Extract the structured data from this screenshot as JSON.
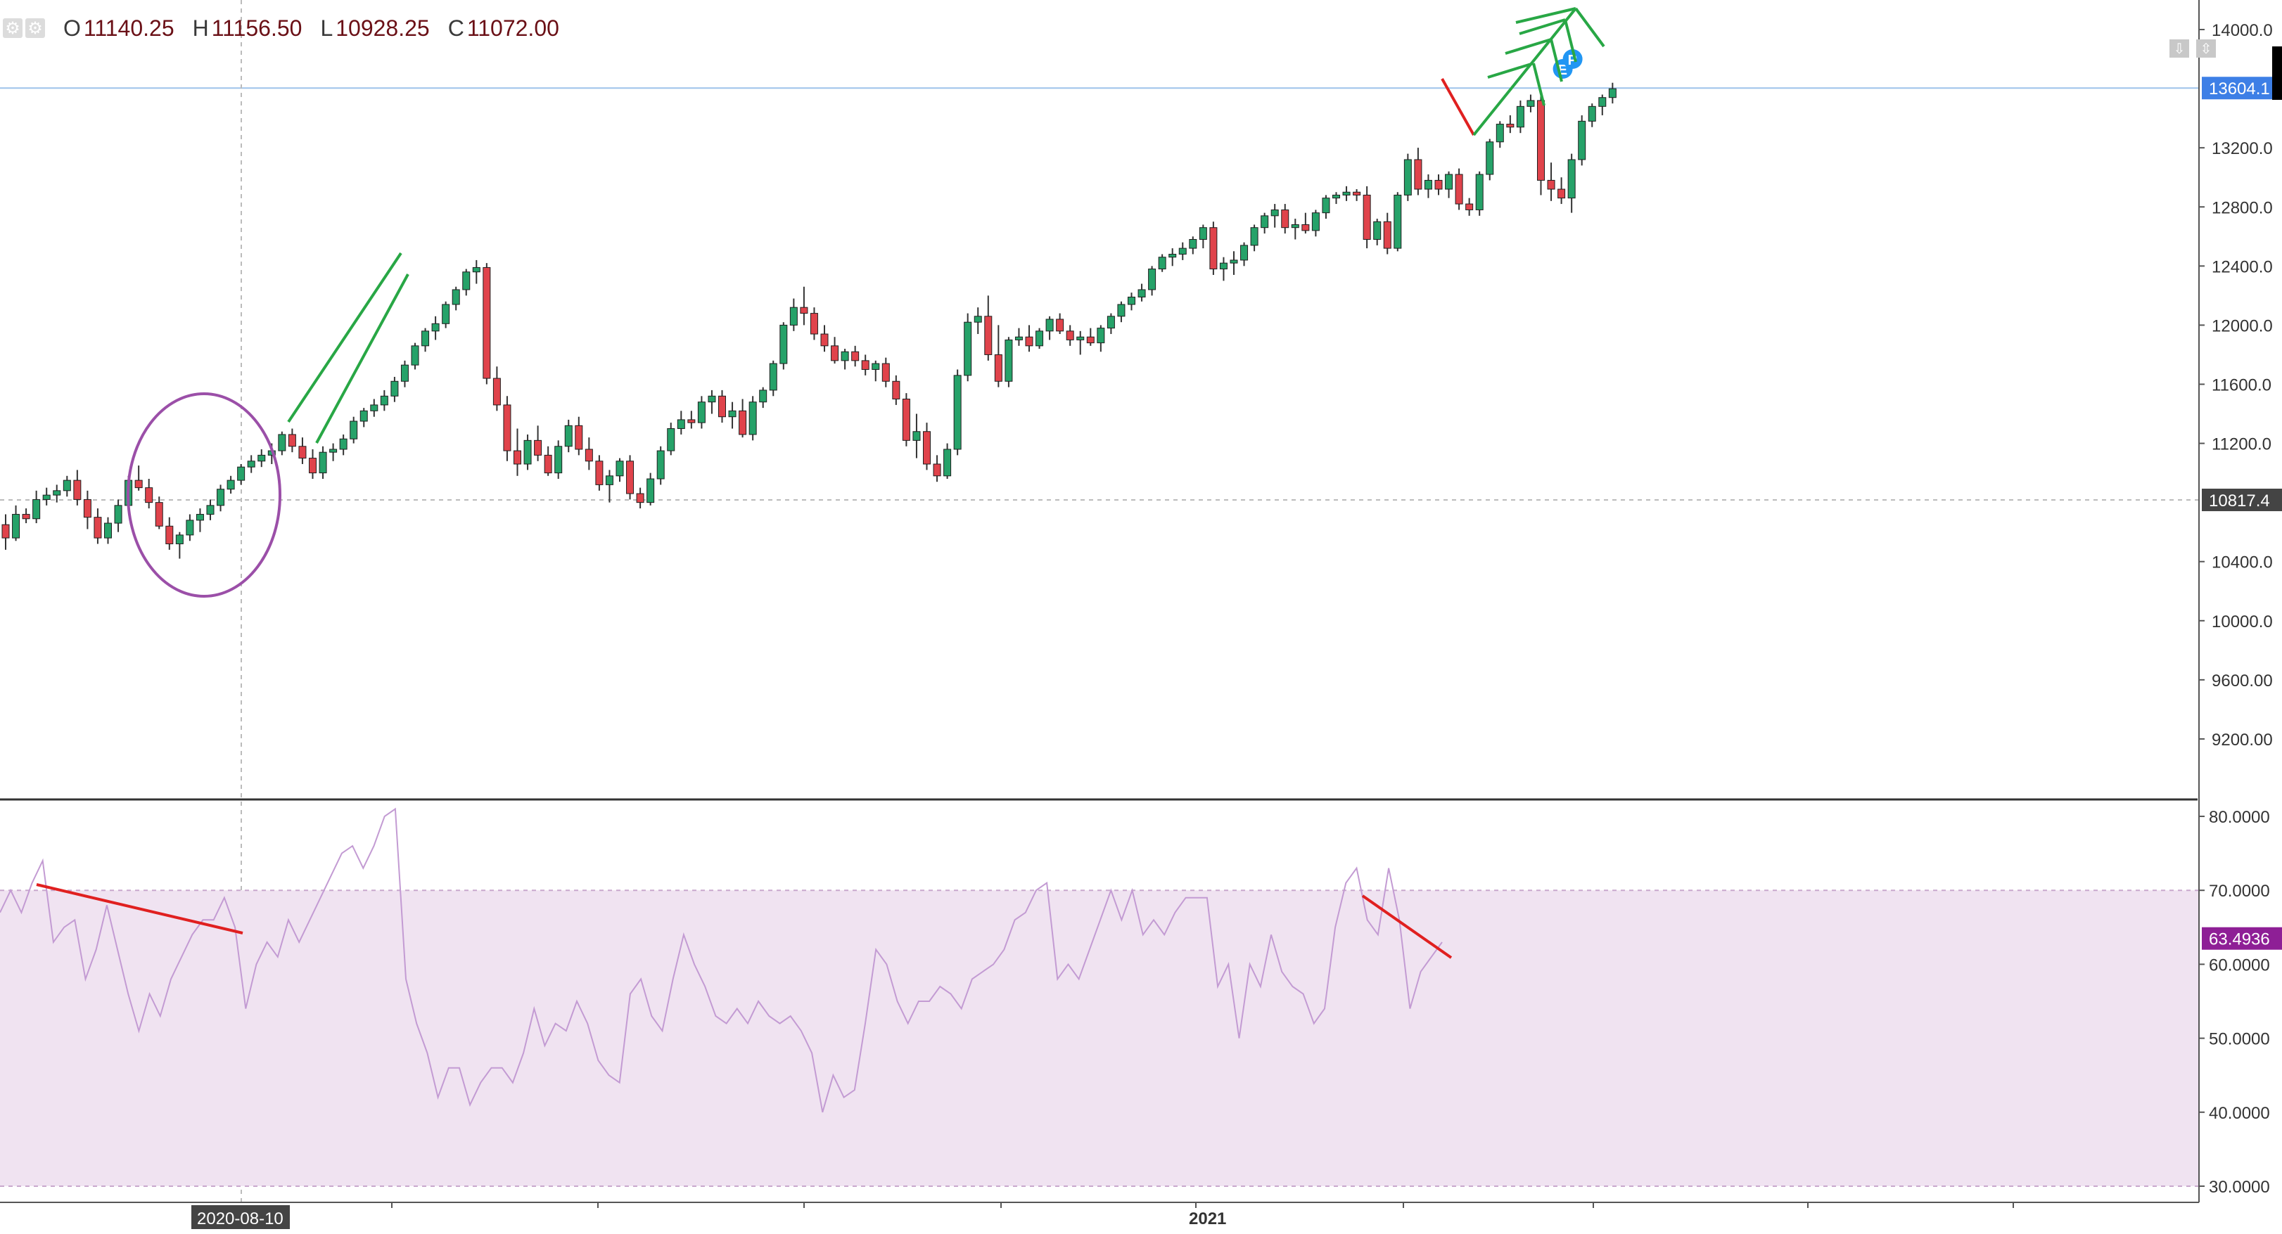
{
  "ohlc": {
    "open_label": "O",
    "open": "11140.25",
    "high_label": "H",
    "high": "11156.50",
    "low_label": "L",
    "low": "10928.25",
    "close_label": "C",
    "close": "11072.00"
  },
  "price_axis": {
    "ticks": [
      "14000.0",
      "13200.0",
      "12800.0",
      "12400.0",
      "12000.0",
      "11600.0",
      "11200.0",
      "10400.0",
      "10000.0",
      "9600.00",
      "9200.00"
    ],
    "last_price_label": "13604.1",
    "crosshair_price_label": "10817.4"
  },
  "rsi_axis": {
    "ticks": [
      "80.0000",
      "70.0000",
      "60.0000",
      "50.0000",
      "40.0000",
      "30.0000"
    ],
    "current_label": "63.4936"
  },
  "time_axis": {
    "crosshair_date": "2020-08-10",
    "year_label": "2021"
  },
  "colors": {
    "up": "#26a269",
    "down": "#e0434b",
    "wick": "#333333",
    "rsi_line": "#c39bd3",
    "rsi_band": "#f0e3f1",
    "last_price_tag": "#3d7fe6",
    "rsi_tag": "#8e1f96",
    "ellipse": "#9b4fa8",
    "trend_red": "#e02020",
    "trend_green": "#28a745"
  },
  "markers": {
    "earnings": "E",
    "dividend": "P"
  },
  "chart_data": [
    {
      "type": "candlestick",
      "ylim": [
        8800,
        14200
      ],
      "ohlc": [
        [
          10650,
          10720,
          10480,
          10560
        ],
        [
          10560,
          10780,
          10540,
          10720
        ],
        [
          10720,
          10760,
          10660,
          10690
        ],
        [
          10690,
          10880,
          10660,
          10820
        ],
        [
          10820,
          10900,
          10780,
          10850
        ],
        [
          10850,
          10920,
          10800,
          10880
        ],
        [
          10880,
          10980,
          10840,
          10950
        ],
        [
          10950,
          11020,
          10780,
          10820
        ],
        [
          10820,
          10880,
          10620,
          10700
        ],
        [
          10700,
          10760,
          10520,
          10560
        ],
        [
          10560,
          10700,
          10520,
          10660
        ],
        [
          10660,
          10820,
          10600,
          10780
        ],
        [
          10780,
          10980,
          10740,
          10950
        ],
        [
          10950,
          11050,
          10880,
          10900
        ],
        [
          10900,
          10960,
          10760,
          10800
        ],
        [
          10800,
          10840,
          10620,
          10640
        ],
        [
          10640,
          10700,
          10480,
          10520
        ],
        [
          10520,
          10600,
          10420,
          10580
        ],
        [
          10580,
          10720,
          10540,
          10680
        ],
        [
          10680,
          10760,
          10600,
          10720
        ],
        [
          10720,
          10820,
          10680,
          10780
        ],
        [
          10780,
          10920,
          10740,
          10890
        ],
        [
          10890,
          10980,
          10860,
          10950
        ],
        [
          10950,
          11060,
          10920,
          11040
        ],
        [
          11040,
          11120,
          11000,
          11080
        ],
        [
          11080,
          11160,
          11040,
          11120
        ],
        [
          11120,
          11200,
          11060,
          11150
        ],
        [
          11150,
          11280,
          11120,
          11260
        ],
        [
          11260,
          11300,
          11140,
          11180
        ],
        [
          11180,
          11240,
          11060,
          11100
        ],
        [
          11100,
          11160,
          10960,
          11000
        ],
        [
          11000,
          11180,
          10960,
          11140
        ],
        [
          11140,
          11200,
          11080,
          11160
        ],
        [
          11160,
          11260,
          11120,
          11230
        ],
        [
          11230,
          11380,
          11200,
          11350
        ],
        [
          11350,
          11440,
          11310,
          11420
        ],
        [
          11420,
          11500,
          11380,
          11460
        ],
        [
          11460,
          11560,
          11420,
          11520
        ],
        [
          11520,
          11650,
          11480,
          11620
        ],
        [
          11620,
          11760,
          11580,
          11730
        ],
        [
          11730,
          11880,
          11700,
          11860
        ],
        [
          11860,
          11980,
          11820,
          11960
        ],
        [
          11960,
          12060,
          11900,
          12010
        ],
        [
          12010,
          12160,
          11980,
          12140
        ],
        [
          12140,
          12260,
          12100,
          12240
        ],
        [
          12240,
          12380,
          12200,
          12360
        ],
        [
          12360,
          12440,
          12280,
          12390
        ],
        [
          12390,
          12420,
          11600,
          11640
        ],
        [
          11640,
          11720,
          11420,
          11460
        ],
        [
          11460,
          11520,
          11080,
          11150
        ],
        [
          11150,
          11300,
          10980,
          11060
        ],
        [
          11060,
          11260,
          11020,
          11220
        ],
        [
          11220,
          11320,
          11080,
          11120
        ],
        [
          11120,
          11180,
          10980,
          11000
        ],
        [
          11000,
          11220,
          10960,
          11180
        ],
        [
          11180,
          11360,
          11140,
          11320
        ],
        [
          11320,
          11380,
          11120,
          11160
        ],
        [
          11160,
          11240,
          11020,
          11080
        ],
        [
          11080,
          11120,
          10880,
          10920
        ],
        [
          10920,
          11020,
          10800,
          10980
        ],
        [
          10980,
          11100,
          10940,
          11080
        ],
        [
          11080,
          11120,
          10820,
          10860
        ],
        [
          10860,
          10900,
          10760,
          10800
        ],
        [
          10800,
          11000,
          10780,
          10960
        ],
        [
          10960,
          11180,
          10920,
          11150
        ],
        [
          11150,
          11340,
          11120,
          11300
        ],
        [
          11300,
          11420,
          11260,
          11360
        ],
        [
          11360,
          11420,
          11300,
          11340
        ],
        [
          11340,
          11520,
          11300,
          11480
        ],
        [
          11480,
          11560,
          11400,
          11520
        ],
        [
          11520,
          11560,
          11340,
          11380
        ],
        [
          11380,
          11480,
          11300,
          11420
        ],
        [
          11420,
          11500,
          11240,
          11260
        ],
        [
          11260,
          11520,
          11220,
          11480
        ],
        [
          11480,
          11580,
          11440,
          11560
        ],
        [
          11560,
          11760,
          11520,
          11740
        ],
        [
          11740,
          12020,
          11700,
          12000
        ],
        [
          12000,
          12180,
          11960,
          12120
        ],
        [
          12120,
          12260,
          12000,
          12080
        ],
        [
          12080,
          12120,
          11900,
          11940
        ],
        [
          11940,
          12000,
          11820,
          11860
        ],
        [
          11860,
          11920,
          11740,
          11760
        ],
        [
          11760,
          11840,
          11700,
          11820
        ],
        [
          11820,
          11860,
          11720,
          11760
        ],
        [
          11760,
          11800,
          11660,
          11700
        ],
        [
          11700,
          11760,
          11620,
          11740
        ],
        [
          11740,
          11780,
          11580,
          11620
        ],
        [
          11620,
          11660,
          11460,
          11500
        ],
        [
          11500,
          11540,
          11180,
          11220
        ],
        [
          11220,
          11400,
          11100,
          11280
        ],
        [
          11280,
          11340,
          11020,
          11060
        ],
        [
          11060,
          11120,
          10940,
          10980
        ],
        [
          10980,
          11200,
          10960,
          11160
        ],
        [
          11160,
          11700,
          11120,
          11660
        ],
        [
          11660,
          12080,
          11620,
          12020
        ],
        [
          12020,
          12120,
          11940,
          12060
        ],
        [
          12060,
          12200,
          11760,
          11800
        ],
        [
          11800,
          12000,
          11580,
          11620
        ],
        [
          11620,
          11920,
          11580,
          11900
        ],
        [
          11900,
          11980,
          11860,
          11920
        ],
        [
          11920,
          12000,
          11820,
          11860
        ],
        [
          11860,
          11980,
          11840,
          11960
        ],
        [
          11960,
          12060,
          11900,
          12040
        ],
        [
          12040,
          12080,
          11940,
          11960
        ],
        [
          11960,
          12000,
          11860,
          11900
        ],
        [
          11900,
          11960,
          11800,
          11920
        ],
        [
          11920,
          11980,
          11860,
          11880
        ],
        [
          11880,
          12000,
          11820,
          11980
        ],
        [
          11980,
          12080,
          11940,
          12060
        ],
        [
          12060,
          12160,
          12020,
          12140
        ],
        [
          12140,
          12220,
          12100,
          12190
        ],
        [
          12190,
          12280,
          12160,
          12240
        ],
        [
          12240,
          12400,
          12200,
          12380
        ],
        [
          12380,
          12480,
          12360,
          12460
        ],
        [
          12460,
          12520,
          12400,
          12480
        ],
        [
          12480,
          12560,
          12440,
          12520
        ],
        [
          12520,
          12600,
          12480,
          12580
        ],
        [
          12580,
          12680,
          12520,
          12660
        ],
        [
          12660,
          12700,
          12340,
          12380
        ],
        [
          12380,
          12460,
          12300,
          12420
        ],
        [
          12420,
          12500,
          12340,
          12440
        ],
        [
          12440,
          12560,
          12400,
          12540
        ],
        [
          12540,
          12680,
          12500,
          12660
        ],
        [
          12660,
          12760,
          12620,
          12740
        ],
        [
          12740,
          12820,
          12660,
          12780
        ],
        [
          12780,
          12820,
          12620,
          12660
        ],
        [
          12660,
          12720,
          12580,
          12680
        ],
        [
          12680,
          12760,
          12620,
          12640
        ],
        [
          12640,
          12780,
          12600,
          12760
        ],
        [
          12760,
          12880,
          12720,
          12860
        ],
        [
          12860,
          12900,
          12820,
          12880
        ],
        [
          12880,
          12940,
          12840,
          12900
        ],
        [
          12900,
          12920,
          12840,
          12880
        ],
        [
          12880,
          12940,
          12520,
          12580
        ],
        [
          12580,
          12720,
          12540,
          12700
        ],
        [
          12700,
          12760,
          12480,
          12520
        ],
        [
          12520,
          12900,
          12500,
          12880
        ],
        [
          12880,
          13160,
          12840,
          13120
        ],
        [
          13120,
          13200,
          12880,
          12920
        ],
        [
          12920,
          13020,
          12860,
          12980
        ],
        [
          12980,
          13020,
          12880,
          12920
        ],
        [
          12920,
          13040,
          12860,
          13020
        ],
        [
          13020,
          13060,
          12780,
          12820
        ],
        [
          12820,
          12860,
          12740,
          12780
        ],
        [
          12780,
          13040,
          12740,
          13020
        ],
        [
          13020,
          13260,
          12980,
          13240
        ],
        [
          13240,
          13380,
          13200,
          13360
        ],
        [
          13360,
          13420,
          13300,
          13340
        ],
        [
          13340,
          13520,
          13300,
          13480
        ],
        [
          13480,
          13560,
          13440,
          13520
        ],
        [
          13520,
          13560,
          12880,
          12980
        ],
        [
          12980,
          13100,
          12840,
          12920
        ],
        [
          12920,
          13000,
          12820,
          12860
        ],
        [
          12860,
          13160,
          12760,
          13120
        ],
        [
          13120,
          13420,
          13080,
          13380
        ],
        [
          13380,
          13500,
          13340,
          13480
        ],
        [
          13480,
          13560,
          13420,
          13540
        ],
        [
          13540,
          13640,
          13500,
          13600
        ]
      ]
    },
    {
      "type": "line",
      "name": "RSI",
      "ylim": [
        28,
        82
      ],
      "values": [
        67,
        70,
        67,
        71,
        74,
        63,
        65,
        66,
        58,
        62,
        68,
        62,
        56,
        51,
        56,
        53,
        58,
        61,
        64,
        66,
        66,
        69,
        65,
        54,
        60,
        63,
        61,
        66,
        63,
        66,
        69,
        72,
        75,
        76,
        73,
        76,
        80,
        81,
        58,
        52,
        48,
        42,
        46,
        46,
        41,
        44,
        46,
        46,
        44,
        48,
        54,
        49,
        52,
        51,
        55,
        52,
        47,
        45,
        44,
        56,
        58,
        53,
        51,
        58,
        64,
        60,
        57,
        53,
        52,
        54,
        52,
        55,
        53,
        52,
        53,
        51,
        48,
        40,
        45,
        42,
        43,
        52,
        62,
        60,
        55,
        52,
        55,
        55,
        57,
        56,
        54,
        58,
        59,
        60,
        62,
        66,
        67,
        70,
        71,
        58,
        60,
        58,
        62,
        66,
        70,
        66,
        70,
        64,
        66,
        64,
        67,
        69,
        69,
        69,
        57,
        60,
        50,
        60,
        57,
        64,
        59,
        57,
        56,
        52,
        54,
        65,
        71,
        73,
        66,
        64,
        73,
        66,
        54,
        59,
        61,
        63
      ],
      "thresholds": [
        70,
        30
      ]
    }
  ]
}
